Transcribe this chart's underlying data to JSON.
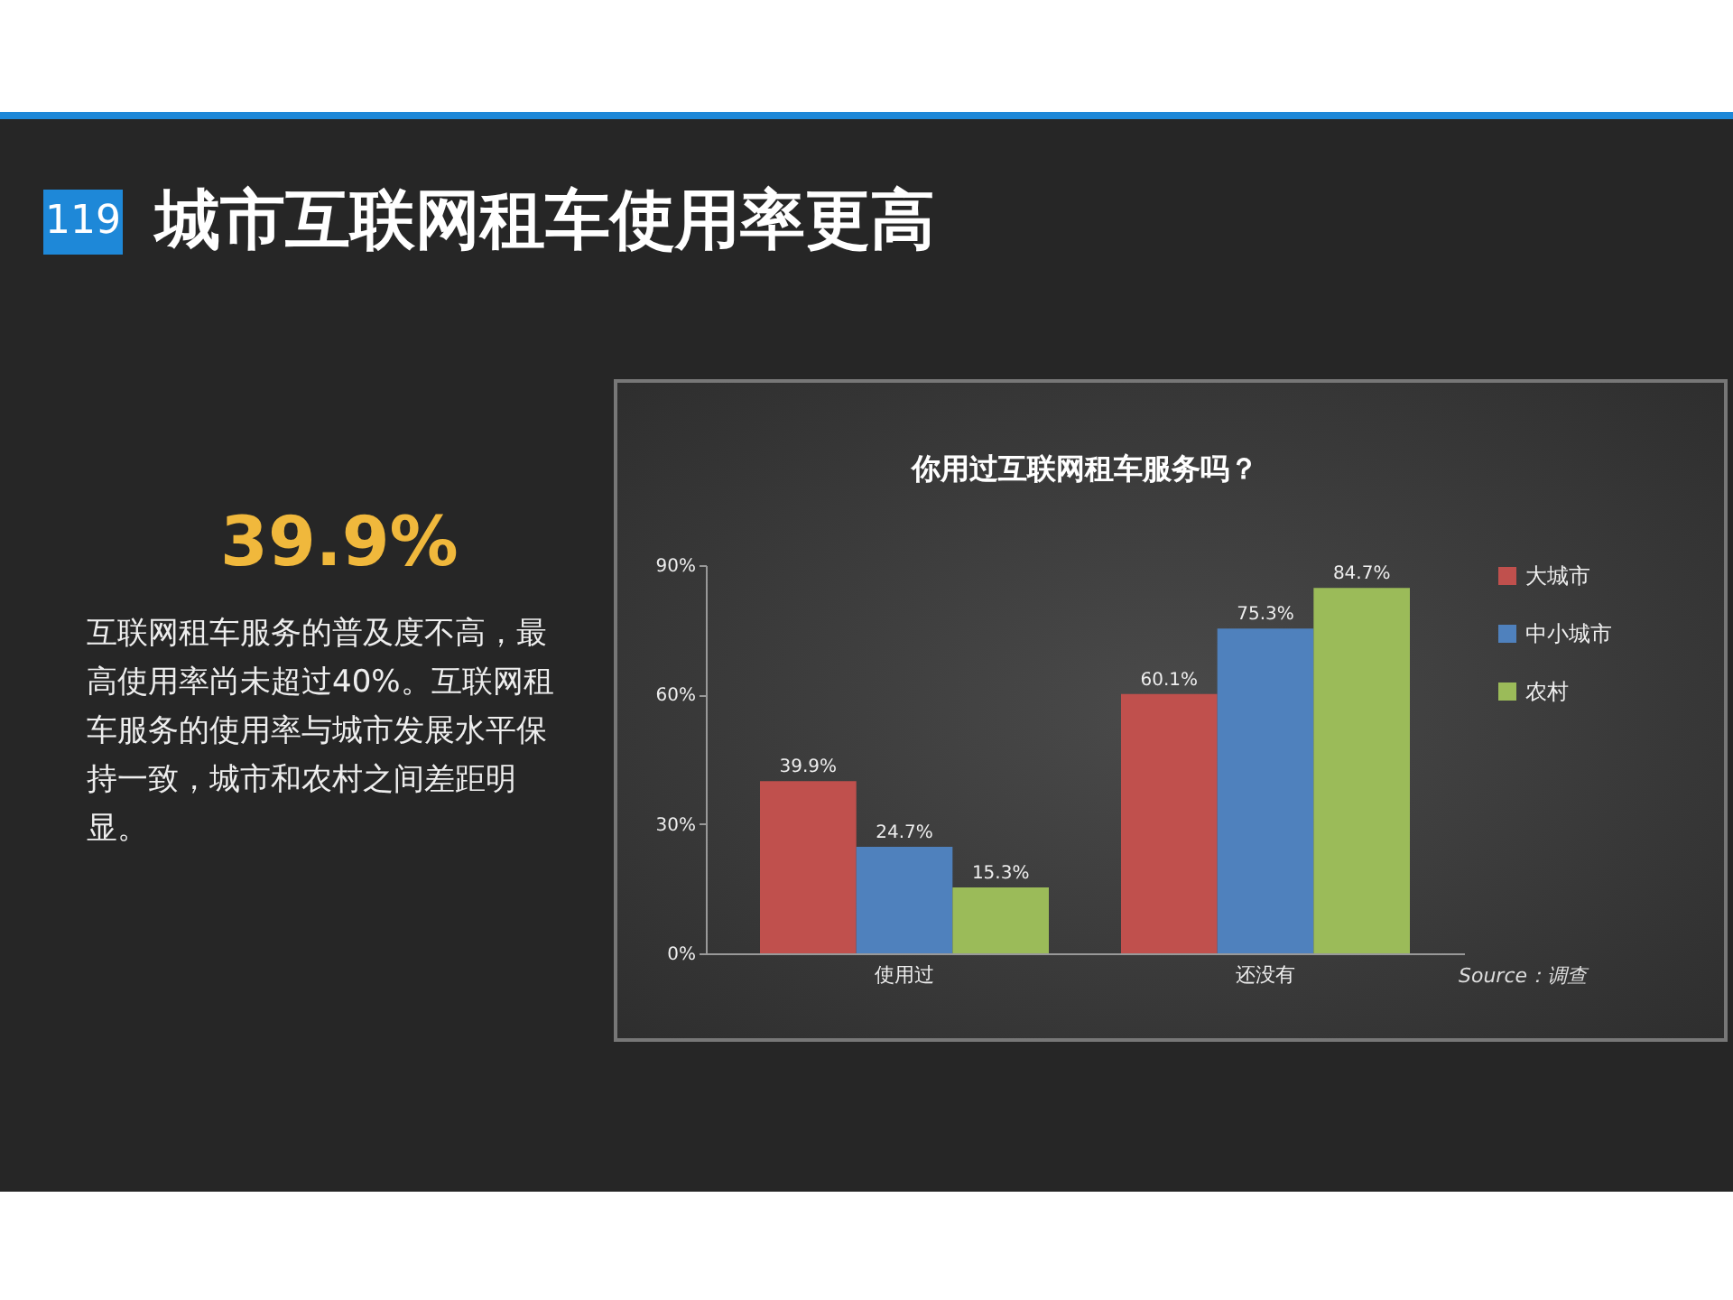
{
  "chart_data": {
    "type": "bar",
    "title": "你用过互联网租车服务吗？",
    "categories": [
      "使用过",
      "还没有"
    ],
    "series": [
      {
        "name": "大城市",
        "color": "#c0504d",
        "values": [
          39.9,
          60.1
        ],
        "value_labels": [
          "39.9%",
          "60.1%"
        ]
      },
      {
        "name": "中小城市",
        "color": "#4f81bd",
        "values": [
          24.7,
          75.3
        ],
        "value_labels": [
          "24.7%",
          "75.3%"
        ]
      },
      {
        "name": "农村",
        "color": "#9bbb59",
        "values": [
          15.3,
          84.7
        ],
        "value_labels": [
          "15.3%",
          "84.7%"
        ]
      }
    ],
    "ylim": [
      0,
      90
    ],
    "yticks": [
      {
        "value": 0,
        "label": "0%"
      },
      {
        "value": 30,
        "label": "30%"
      },
      {
        "value": 60,
        "label": "60%"
      },
      {
        "value": 90,
        "label": "90%"
      }
    ],
    "grid": false,
    "legend": "right",
    "annotations": [
      "119",
      "城市互联网租车使用率更高",
      "39.9%",
      "互联网租车服务的普及度不高，最高使用率尚未超过40%。互联网租车服务的使用率与城市发展水平保持一致，城市和农村之间差距明显。",
      "Source：调查"
    ]
  }
}
